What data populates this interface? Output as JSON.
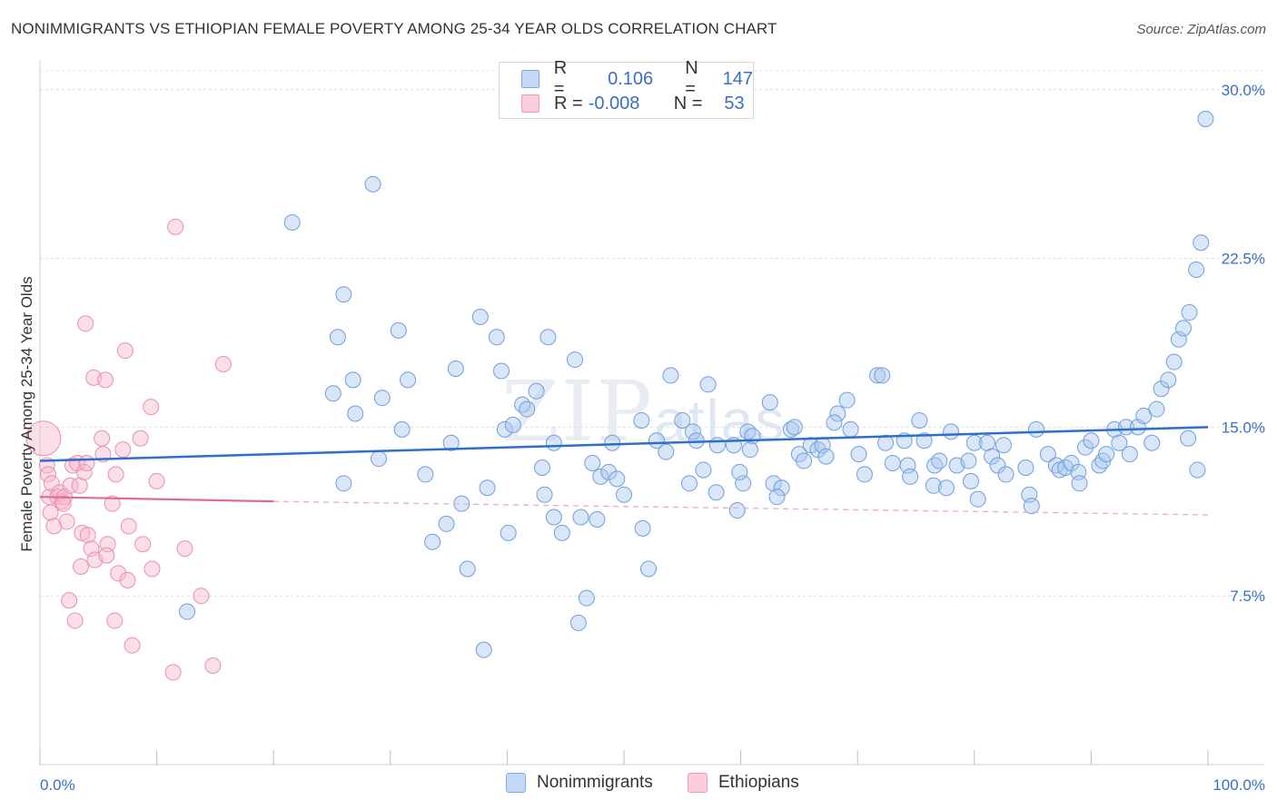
{
  "header": {
    "title": "NONIMMIGRANTS VS ETHIOPIAN FEMALE POVERTY AMONG 25-34 YEAR OLDS CORRELATION CHART",
    "source": "Source: ZipAtlas.com"
  },
  "watermark": {
    "zip": "ZIP",
    "atlas": "atlas"
  },
  "stats_legend": {
    "rows": [
      {
        "r_label": "R =",
        "r_value": "0.106",
        "n_label": "N =",
        "n_value": "147",
        "color": "#a9c8f0"
      },
      {
        "r_label": "R =",
        "r_value": "-0.008",
        "n_label": "N =",
        "n_value": "53",
        "color": "#f6b8cb"
      }
    ]
  },
  "series_legend": {
    "items": [
      {
        "label": "Nonimmigrants",
        "color": "#a9c8f0"
      },
      {
        "label": "Ethiopians",
        "color": "#f6b8cb"
      }
    ]
  },
  "chart_data": {
    "type": "scatter",
    "title": "NONIMMIGRANTS VS ETHIOPIAN FEMALE POVERTY AMONG 25-34 YEAR OLDS CORRELATION CHART",
    "xlabel": "",
    "ylabel": "Female Poverty Among 25-34 Year Olds",
    "xlim": [
      0,
      100
    ],
    "ylim": [
      0,
      31
    ],
    "x_tick_labels": [
      "0.0%",
      "100.0%"
    ],
    "y_ticks": [
      7.5,
      15.0,
      22.5,
      30.0
    ],
    "y_tick_labels": [
      "7.5%",
      "15.0%",
      "22.5%",
      "30.0%"
    ],
    "grid": true,
    "legend_position": "bottom",
    "colors": {
      "blue": "#a9c8f0",
      "blue_line": "#2e6fcb",
      "pink": "#f6b8cb",
      "pink_line": "#e06a92",
      "tick_label": "#3a6fc4"
    },
    "series": [
      {
        "name": "Nonimmigrants",
        "color": "#a9c8f0",
        "trend": {
          "x": [
            0,
            100
          ],
          "y": [
            13.5,
            15.0
          ]
        },
        "points": [
          [
            12.6,
            6.8
          ],
          [
            21.6,
            24.1
          ],
          [
            28.5,
            25.8
          ],
          [
            26.0,
            20.9
          ],
          [
            25.5,
            19.0
          ],
          [
            25.1,
            16.5
          ],
          [
            26.8,
            17.1
          ],
          [
            27.0,
            15.6
          ],
          [
            29.3,
            16.3
          ],
          [
            30.7,
            19.3
          ],
          [
            31.0,
            14.9
          ],
          [
            31.5,
            17.1
          ],
          [
            29.0,
            13.6
          ],
          [
            26.0,
            12.5
          ],
          [
            33.0,
            12.9
          ],
          [
            35.2,
            14.3
          ],
          [
            35.6,
            17.6
          ],
          [
            34.8,
            10.7
          ],
          [
            33.6,
            9.9
          ],
          [
            36.1,
            11.6
          ],
          [
            37.7,
            19.9
          ],
          [
            38.3,
            12.3
          ],
          [
            39.1,
            19.0
          ],
          [
            39.8,
            14.9
          ],
          [
            39.5,
            17.5
          ],
          [
            40.1,
            10.3
          ],
          [
            40.5,
            15.1
          ],
          [
            41.3,
            16.0
          ],
          [
            41.7,
            15.8
          ],
          [
            42.5,
            16.6
          ],
          [
            43.5,
            19.0
          ],
          [
            43.0,
            13.2
          ],
          [
            43.2,
            12.0
          ],
          [
            44.0,
            14.3
          ],
          [
            44.0,
            11.0
          ],
          [
            45.8,
            18.0
          ],
          [
            36.6,
            8.7
          ],
          [
            38.0,
            5.1
          ],
          [
            46.8,
            7.4
          ],
          [
            46.1,
            6.3
          ],
          [
            44.7,
            10.3
          ],
          [
            46.3,
            11.0
          ],
          [
            47.3,
            13.4
          ],
          [
            47.7,
            10.9
          ],
          [
            48.0,
            12.8
          ],
          [
            48.7,
            13.0
          ],
          [
            49.0,
            14.3
          ],
          [
            49.4,
            12.7
          ],
          [
            50.0,
            12.0
          ],
          [
            51.6,
            10.5
          ],
          [
            52.1,
            8.7
          ],
          [
            51.5,
            15.3
          ],
          [
            52.8,
            14.4
          ],
          [
            54.0,
            17.3
          ],
          [
            53.6,
            13.9
          ],
          [
            55.0,
            15.3
          ],
          [
            55.9,
            14.8
          ],
          [
            56.2,
            14.4
          ],
          [
            55.6,
            12.5
          ],
          [
            57.2,
            16.9
          ],
          [
            56.8,
            13.1
          ],
          [
            58.0,
            14.2
          ],
          [
            57.9,
            12.1
          ],
          [
            59.4,
            14.2
          ],
          [
            59.7,
            11.3
          ],
          [
            60.2,
            12.5
          ],
          [
            60.6,
            14.8
          ],
          [
            61.0,
            14.6
          ],
          [
            60.8,
            14.0
          ],
          [
            59.9,
            13.0
          ],
          [
            62.5,
            16.1
          ],
          [
            62.8,
            12.5
          ],
          [
            63.5,
            12.3
          ],
          [
            63.1,
            11.9
          ],
          [
            64.3,
            14.9
          ],
          [
            64.6,
            15.0
          ],
          [
            65.0,
            13.8
          ],
          [
            65.4,
            13.5
          ],
          [
            66.0,
            14.2
          ],
          [
            66.6,
            14.0
          ],
          [
            67.0,
            14.2
          ],
          [
            67.3,
            13.7
          ],
          [
            68.3,
            15.6
          ],
          [
            68.0,
            15.2
          ],
          [
            69.1,
            16.2
          ],
          [
            69.4,
            14.9
          ],
          [
            70.1,
            13.8
          ],
          [
            70.6,
            12.9
          ],
          [
            71.7,
            17.3
          ],
          [
            72.1,
            17.3
          ],
          [
            72.4,
            14.3
          ],
          [
            73.0,
            13.4
          ],
          [
            74.0,
            14.4
          ],
          [
            74.3,
            13.3
          ],
          [
            75.3,
            15.3
          ],
          [
            75.7,
            14.4
          ],
          [
            74.5,
            12.8
          ],
          [
            76.5,
            12.4
          ],
          [
            76.6,
            13.3
          ],
          [
            77.0,
            13.5
          ],
          [
            77.6,
            12.3
          ],
          [
            78.0,
            14.8
          ],
          [
            78.5,
            13.3
          ],
          [
            79.5,
            13.5
          ],
          [
            79.7,
            12.6
          ],
          [
            80.0,
            14.3
          ],
          [
            80.3,
            11.8
          ],
          [
            81.1,
            14.3
          ],
          [
            81.5,
            13.7
          ],
          [
            82.0,
            13.3
          ],
          [
            82.5,
            14.2
          ],
          [
            82.7,
            12.9
          ],
          [
            84.4,
            13.2
          ],
          [
            84.7,
            12.0
          ],
          [
            85.3,
            14.9
          ],
          [
            84.9,
            11.5
          ],
          [
            86.3,
            13.8
          ],
          [
            87.0,
            13.3
          ],
          [
            87.3,
            13.1
          ],
          [
            87.8,
            13.2
          ],
          [
            88.3,
            13.4
          ],
          [
            88.9,
            13.0
          ],
          [
            89.0,
            12.5
          ],
          [
            89.5,
            14.1
          ],
          [
            90.0,
            14.4
          ],
          [
            90.7,
            13.3
          ],
          [
            91.0,
            13.5
          ],
          [
            91.3,
            13.8
          ],
          [
            92.0,
            14.9
          ],
          [
            92.4,
            14.3
          ],
          [
            93.0,
            15.0
          ],
          [
            93.3,
            13.8
          ],
          [
            94.0,
            15.0
          ],
          [
            94.5,
            15.5
          ],
          [
            95.2,
            14.3
          ],
          [
            95.6,
            15.8
          ],
          [
            96.0,
            16.7
          ],
          [
            96.6,
            17.1
          ],
          [
            97.1,
            17.9
          ],
          [
            97.5,
            18.9
          ],
          [
            97.9,
            19.4
          ],
          [
            98.4,
            20.1
          ],
          [
            99.0,
            22.0
          ],
          [
            99.4,
            23.2
          ],
          [
            99.8,
            28.7
          ],
          [
            99.1,
            13.1
          ],
          [
            98.3,
            14.5
          ]
        ]
      },
      {
        "name": "Ethiopians",
        "color": "#f6b8cb",
        "trend": {
          "x": [
            0,
            20
          ],
          "y": [
            11.9,
            11.7
          ]
        },
        "trend_dashed": {
          "x": [
            20,
            100
          ],
          "y": [
            11.7,
            11.1
          ]
        },
        "points": [
          [
            0.3,
            14.5
          ],
          [
            0.6,
            13.3
          ],
          [
            0.7,
            12.9
          ],
          [
            0.8,
            11.9
          ],
          [
            0.9,
            11.2
          ],
          [
            1.0,
            12.5
          ],
          [
            1.2,
            10.6
          ],
          [
            1.5,
            11.9
          ],
          [
            1.7,
            12.1
          ],
          [
            1.9,
            11.7
          ],
          [
            2.1,
            11.9
          ],
          [
            2.3,
            10.8
          ],
          [
            2.5,
            7.3
          ],
          [
            2.6,
            12.4
          ],
          [
            2.8,
            13.3
          ],
          [
            3.0,
            6.4
          ],
          [
            3.2,
            13.4
          ],
          [
            3.4,
            12.4
          ],
          [
            3.5,
            8.8
          ],
          [
            3.6,
            10.3
          ],
          [
            3.8,
            13.0
          ],
          [
            3.9,
            19.6
          ],
          [
            4.1,
            10.2
          ],
          [
            4.4,
            9.6
          ],
          [
            4.6,
            17.2
          ],
          [
            4.7,
            9.1
          ],
          [
            5.3,
            14.5
          ],
          [
            5.4,
            13.8
          ],
          [
            5.6,
            17.1
          ],
          [
            5.8,
            9.8
          ],
          [
            5.7,
            9.3
          ],
          [
            6.2,
            11.6
          ],
          [
            6.4,
            6.4
          ],
          [
            6.5,
            12.9
          ],
          [
            6.7,
            8.5
          ],
          [
            7.1,
            14.0
          ],
          [
            7.3,
            18.4
          ],
          [
            7.5,
            8.2
          ],
          [
            7.6,
            10.6
          ],
          [
            7.9,
            5.3
          ],
          [
            8.6,
            14.5
          ],
          [
            8.8,
            9.8
          ],
          [
            9.5,
            15.9
          ],
          [
            9.6,
            8.7
          ],
          [
            10.0,
            12.6
          ],
          [
            11.4,
            4.1
          ],
          [
            11.6,
            23.9
          ],
          [
            12.4,
            9.6
          ],
          [
            13.8,
            7.5
          ],
          [
            14.8,
            4.4
          ],
          [
            15.7,
            17.8
          ],
          [
            4.0,
            13.4
          ],
          [
            2.0,
            11.6
          ]
        ]
      }
    ]
  }
}
